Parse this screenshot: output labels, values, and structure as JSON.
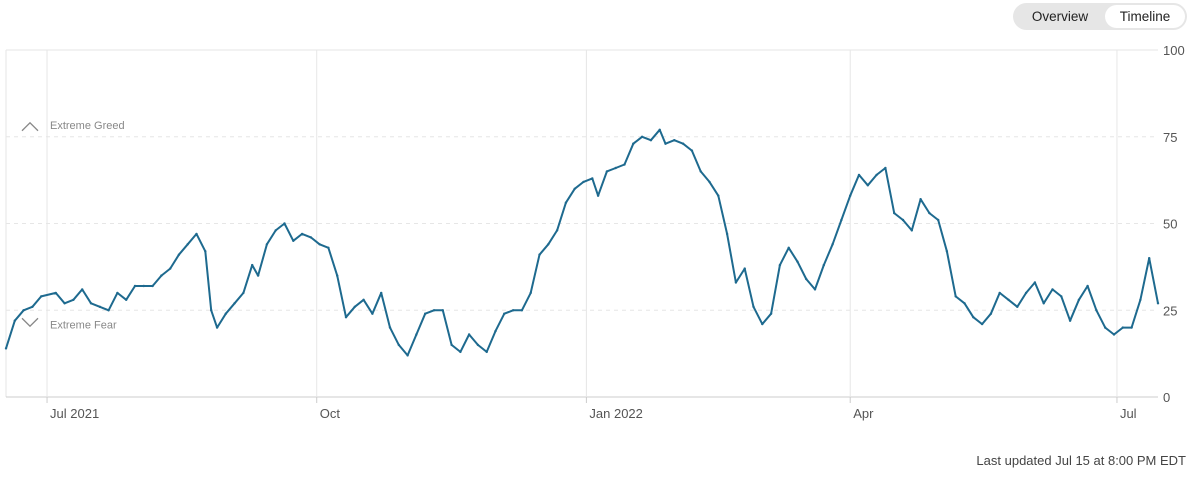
{
  "toggle": {
    "overview_label": "Overview",
    "timeline_label": "Timeline",
    "selected": "Timeline"
  },
  "footer": {
    "last_updated": "Last updated Jul 15 at 8:00 PM EDT"
  },
  "colors": {
    "line": "#1e6a8f",
    "grid": "#e6e6e6",
    "text": "#555555"
  },
  "chart_data": {
    "type": "line",
    "title": "",
    "xlabel": "",
    "ylabel": "",
    "ylim": [
      0,
      100
    ],
    "yticks": [
      0,
      25,
      50,
      75,
      100
    ],
    "x_ticks": [
      {
        "label": "Jul 2021",
        "date": "2021-07-01"
      },
      {
        "label": "Oct",
        "date": "2021-10-01"
      },
      {
        "label": "Jan 2022",
        "date": "2022-01-01"
      },
      {
        "label": "Apr",
        "date": "2022-04-01"
      },
      {
        "label": "Jul",
        "date": "2022-07-01"
      }
    ],
    "xlim": [
      "2021-06-17",
      "2022-07-15"
    ],
    "annotations": [
      {
        "label": "Extreme Greed",
        "icon": "chevron-up-icon",
        "value": 75
      },
      {
        "label": "Extreme Fear",
        "icon": "chevron-down-icon",
        "value": 25
      }
    ],
    "grid": true,
    "series": [
      {
        "points": [
          [
            "2021-06-17",
            14
          ],
          [
            "2021-06-20",
            22
          ],
          [
            "2021-06-23",
            25
          ],
          [
            "2021-06-26",
            26
          ],
          [
            "2021-06-29",
            29
          ],
          [
            "2021-07-04",
            30
          ],
          [
            "2021-07-07",
            27
          ],
          [
            "2021-07-10",
            28
          ],
          [
            "2021-07-13",
            31
          ],
          [
            "2021-07-16",
            27
          ],
          [
            "2021-07-19",
            26
          ],
          [
            "2021-07-22",
            25
          ],
          [
            "2021-07-25",
            30
          ],
          [
            "2021-07-28",
            28
          ],
          [
            "2021-07-31",
            32
          ],
          [
            "2021-08-03",
            32
          ],
          [
            "2021-08-06",
            32
          ],
          [
            "2021-08-09",
            35
          ],
          [
            "2021-08-12",
            37
          ],
          [
            "2021-08-15",
            41
          ],
          [
            "2021-08-18",
            44
          ],
          [
            "2021-08-21",
            47
          ],
          [
            "2021-08-24",
            42
          ],
          [
            "2021-08-26",
            25
          ],
          [
            "2021-08-28",
            20
          ],
          [
            "2021-08-31",
            24
          ],
          [
            "2021-09-03",
            27
          ],
          [
            "2021-09-06",
            30
          ],
          [
            "2021-09-09",
            38
          ],
          [
            "2021-09-11",
            35
          ],
          [
            "2021-09-14",
            44
          ],
          [
            "2021-09-17",
            48
          ],
          [
            "2021-09-20",
            50
          ],
          [
            "2021-09-23",
            45
          ],
          [
            "2021-09-26",
            47
          ],
          [
            "2021-09-29",
            46
          ],
          [
            "2021-10-02",
            44
          ],
          [
            "2021-10-05",
            43
          ],
          [
            "2021-10-08",
            35
          ],
          [
            "2021-10-11",
            23
          ],
          [
            "2021-10-14",
            26
          ],
          [
            "2021-10-17",
            28
          ],
          [
            "2021-10-20",
            24
          ],
          [
            "2021-10-23",
            30
          ],
          [
            "2021-10-26",
            20
          ],
          [
            "2021-10-29",
            15
          ],
          [
            "2021-11-01",
            12
          ],
          [
            "2021-11-04",
            18
          ],
          [
            "2021-11-07",
            24
          ],
          [
            "2021-11-10",
            25
          ],
          [
            "2021-11-13",
            25
          ],
          [
            "2021-11-16",
            15
          ],
          [
            "2021-11-19",
            13
          ],
          [
            "2021-11-22",
            18
          ],
          [
            "2021-11-25",
            15
          ],
          [
            "2021-11-28",
            13
          ],
          [
            "2021-12-01",
            19
          ],
          [
            "2021-12-04",
            24
          ],
          [
            "2021-12-07",
            25
          ],
          [
            "2021-12-10",
            25
          ],
          [
            "2021-12-13",
            30
          ],
          [
            "2021-12-16",
            41
          ],
          [
            "2021-12-19",
            44
          ],
          [
            "2021-12-22",
            48
          ],
          [
            "2021-12-25",
            56
          ],
          [
            "2021-12-28",
            60
          ],
          [
            "2021-12-31",
            62
          ],
          [
            "2022-01-03",
            63
          ],
          [
            "2022-01-05",
            58
          ],
          [
            "2022-01-08",
            65
          ],
          [
            "2022-01-11",
            66
          ],
          [
            "2022-01-14",
            67
          ],
          [
            "2022-01-17",
            73
          ],
          [
            "2022-01-20",
            75
          ],
          [
            "2022-01-23",
            74
          ],
          [
            "2022-01-26",
            77
          ],
          [
            "2022-01-28",
            73
          ],
          [
            "2022-01-31",
            74
          ],
          [
            "2022-02-03",
            73
          ],
          [
            "2022-02-06",
            71
          ],
          [
            "2022-02-09",
            65
          ],
          [
            "2022-02-12",
            62
          ],
          [
            "2022-02-15",
            58
          ],
          [
            "2022-02-18",
            47
          ],
          [
            "2022-02-21",
            33
          ],
          [
            "2022-02-24",
            37
          ],
          [
            "2022-02-27",
            26
          ],
          [
            "2022-03-02",
            21
          ],
          [
            "2022-03-05",
            24
          ],
          [
            "2022-03-08",
            38
          ],
          [
            "2022-03-11",
            43
          ],
          [
            "2022-03-14",
            39
          ],
          [
            "2022-03-17",
            34
          ],
          [
            "2022-03-20",
            31
          ],
          [
            "2022-03-23",
            38
          ],
          [
            "2022-03-26",
            44
          ],
          [
            "2022-03-29",
            51
          ],
          [
            "2022-04-01",
            58
          ],
          [
            "2022-04-04",
            64
          ],
          [
            "2022-04-07",
            61
          ],
          [
            "2022-04-10",
            64
          ],
          [
            "2022-04-13",
            66
          ],
          [
            "2022-04-16",
            53
          ],
          [
            "2022-04-19",
            51
          ],
          [
            "2022-04-22",
            48
          ],
          [
            "2022-04-25",
            57
          ],
          [
            "2022-04-28",
            53
          ],
          [
            "2022-05-01",
            51
          ],
          [
            "2022-05-04",
            42
          ],
          [
            "2022-05-07",
            29
          ],
          [
            "2022-05-10",
            27
          ],
          [
            "2022-05-13",
            23
          ],
          [
            "2022-05-16",
            21
          ],
          [
            "2022-05-19",
            24
          ],
          [
            "2022-05-22",
            30
          ],
          [
            "2022-05-25",
            28
          ],
          [
            "2022-05-28",
            26
          ],
          [
            "2022-05-31",
            30
          ],
          [
            "2022-06-03",
            33
          ],
          [
            "2022-06-06",
            27
          ],
          [
            "2022-06-09",
            31
          ],
          [
            "2022-06-12",
            29
          ],
          [
            "2022-06-15",
            22
          ],
          [
            "2022-06-18",
            28
          ],
          [
            "2022-06-21",
            32
          ],
          [
            "2022-06-24",
            25
          ],
          [
            "2022-06-27",
            20
          ],
          [
            "2022-06-30",
            18
          ],
          [
            "2022-07-03",
            20
          ],
          [
            "2022-07-06",
            20
          ],
          [
            "2022-07-09",
            28
          ],
          [
            "2022-07-12",
            40
          ],
          [
            "2022-07-15",
            27
          ]
        ]
      }
    ]
  }
}
